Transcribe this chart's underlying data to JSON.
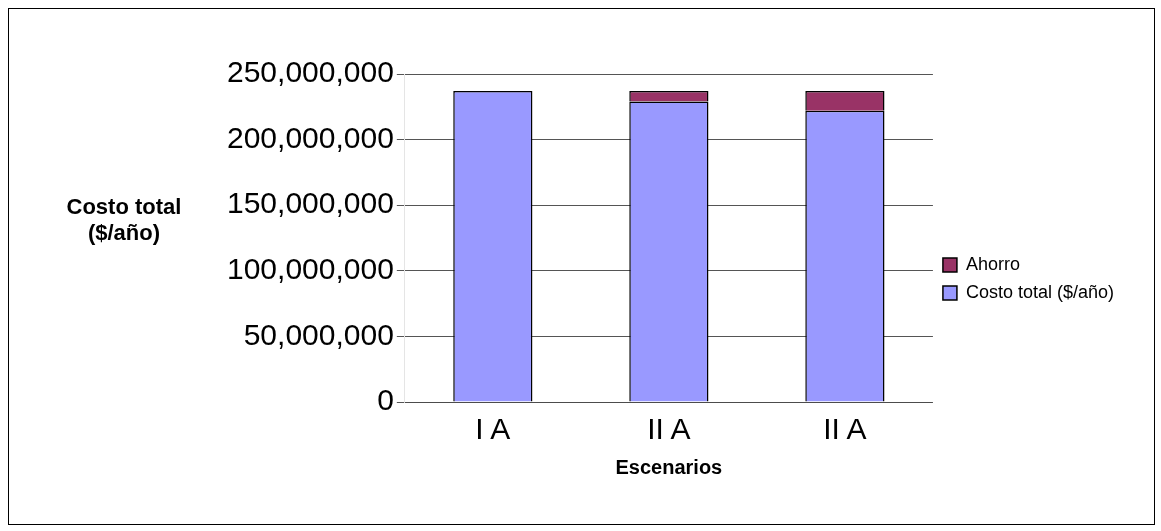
{
  "chart_data": {
    "type": "bar",
    "stacked": true,
    "xlabel": "Escenarios",
    "ylabel": "Costo total ($/año)",
    "categories": [
      "I A",
      "II A",
      "II A"
    ],
    "series": [
      {
        "name": "Costo total ($/año)",
        "color": "#9999ff",
        "values": [
          237000000,
          229000000,
          222000000
        ]
      },
      {
        "name": "Ahorro",
        "color": "#993366",
        "values": [
          0,
          8000000,
          15000000
        ]
      }
    ],
    "ylim": [
      0,
      250000000
    ],
    "yticks": [
      0,
      {
        "value": 50000000,
        "label": "50,000,000"
      },
      {
        "value": 100000000,
        "label": "100,000,000"
      },
      {
        "value": 150000000,
        "label": "150,000,000"
      },
      {
        "value": 200000000,
        "label": "200,000,000"
      },
      {
        "value": 250000000,
        "label": "250,000,000"
      }
    ],
    "grid": "y",
    "legend": "right"
  }
}
